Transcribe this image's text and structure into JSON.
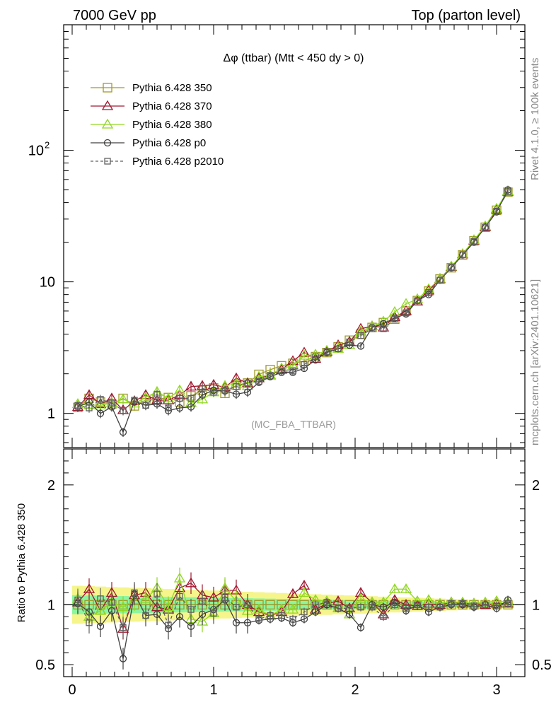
{
  "header": {
    "left": "7000 GeV pp",
    "right": "Top (parton level)"
  },
  "side_labels": {
    "upper": "Rivet 4.1.0, ≥ 100k events",
    "lower": "mcplots.cern.ch [arXiv:2401.10621]"
  },
  "chart_data": [
    {
      "type": "line",
      "panel": "main",
      "title": "Δφ (ttbar) (Mtt < 450 dy > 0)",
      "analysis_label": "(MC_FBA_TTBAR)",
      "yscale": "log",
      "xlim": [
        -0.06,
        3.2
      ],
      "ylim": [
        0.55,
        900
      ],
      "ytick_labels": [
        "1",
        "10",
        "10^2"
      ],
      "series": [
        {
          "name": "Pythia 6.428 350",
          "color": "#a09b28",
          "marker": "square",
          "dash": false,
          "x": [
            0.04,
            0.12,
            0.2,
            0.28,
            0.36,
            0.44,
            0.52,
            0.6,
            0.68,
            0.76,
            0.84,
            0.92,
            1.0,
            1.08,
            1.16,
            1.24,
            1.32,
            1.4,
            1.48,
            1.56,
            1.64,
            1.72,
            1.8,
            1.88,
            1.96,
            2.04,
            2.12,
            2.2,
            2.28,
            2.36,
            2.44,
            2.52,
            2.6,
            2.68,
            2.76,
            2.84,
            2.92,
            3.0,
            3.08
          ],
          "values": [
            1.11,
            1.3,
            1.22,
            1.18,
            1.3,
            1.14,
            1.26,
            1.28,
            1.32,
            1.22,
            1.36,
            1.5,
            1.56,
            1.42,
            1.64,
            1.7,
            1.98,
            2.15,
            2.3,
            2.4,
            2.5,
            2.7,
            2.9,
            3.2,
            3.6,
            4.0,
            4.5,
            4.9,
            5.2,
            6.0,
            7.2,
            8.5,
            10.5,
            12.8,
            16.0,
            20.5,
            26.0,
            35.0,
            48.0
          ]
        },
        {
          "name": "Pythia 6.428 370",
          "color": "#a01830",
          "marker": "triangle",
          "dash": false,
          "x": [
            0.04,
            0.12,
            0.2,
            0.28,
            0.36,
            0.44,
            0.52,
            0.6,
            0.68,
            0.76,
            0.84,
            0.92,
            1.0,
            1.08,
            1.16,
            1.24,
            1.32,
            1.4,
            1.48,
            1.56,
            1.64,
            1.72,
            1.8,
            1.88,
            1.96,
            2.04,
            2.12,
            2.2,
            2.28,
            2.36,
            2.44,
            2.52,
            2.6,
            2.68,
            2.76,
            2.84,
            2.92,
            3.0,
            3.08
          ],
          "values": [
            1.12,
            1.38,
            1.18,
            1.3,
            1.06,
            1.24,
            1.38,
            1.26,
            1.26,
            1.38,
            1.6,
            1.62,
            1.65,
            1.58,
            1.85,
            1.7,
            1.85,
            1.95,
            2.15,
            2.5,
            2.9,
            2.6,
            2.95,
            3.3,
            3.5,
            4.4,
            4.6,
            4.5,
            5.4,
            6.0,
            7.1,
            8.6,
            10.5,
            13.0,
            16.2,
            20.6,
            26.0,
            35.5,
            48.5
          ]
        },
        {
          "name": "Pythia 6.428 380",
          "color": "#90d820",
          "marker": "triangle",
          "dash": false,
          "x": [
            0.04,
            0.12,
            0.2,
            0.28,
            0.36,
            0.44,
            0.52,
            0.6,
            0.68,
            0.76,
            0.84,
            0.92,
            1.0,
            1.08,
            1.16,
            1.24,
            1.32,
            1.4,
            1.48,
            1.56,
            1.64,
            1.72,
            1.8,
            1.88,
            1.96,
            2.04,
            2.12,
            2.2,
            2.28,
            2.36,
            2.44,
            2.52,
            2.6,
            2.68,
            2.76,
            2.84,
            2.92,
            3.0,
            3.08
          ],
          "values": [
            1.18,
            1.16,
            1.15,
            1.2,
            1.28,
            1.19,
            1.32,
            1.46,
            1.3,
            1.5,
            1.2,
            1.28,
            1.45,
            1.62,
            1.68,
            1.62,
            1.9,
            1.96,
            2.2,
            2.3,
            2.75,
            2.8,
            3.0,
            3.1,
            3.3,
            4.2,
            4.6,
            5.0,
            5.9,
            6.8,
            7.4,
            8.8,
            10.6,
            13.1,
            16.3,
            20.8,
            26.5,
            36.0,
            49.0
          ]
        },
        {
          "name": "Pythia 6.428 p0",
          "color": "#404040",
          "marker": "circle",
          "dash": false,
          "x": [
            0.04,
            0.12,
            0.2,
            0.28,
            0.36,
            0.44,
            0.52,
            0.6,
            0.68,
            0.76,
            0.84,
            0.92,
            1.0,
            1.08,
            1.16,
            1.24,
            1.32,
            1.4,
            1.48,
            1.56,
            1.64,
            1.72,
            1.8,
            1.88,
            1.96,
            2.04,
            2.12,
            2.2,
            2.28,
            2.36,
            2.44,
            2.52,
            2.6,
            2.68,
            2.76,
            2.84,
            2.92,
            3.0,
            3.08
          ],
          "values": [
            1.12,
            1.22,
            1.0,
            1.12,
            0.72,
            1.24,
            1.15,
            1.18,
            1.05,
            1.1,
            1.12,
            1.38,
            1.5,
            1.48,
            1.4,
            1.45,
            1.72,
            1.9,
            2.05,
            2.05,
            2.2,
            2.55,
            2.9,
            3.1,
            3.3,
            3.25,
            4.5,
            4.8,
            5.3,
            5.7,
            7.2,
            8.0,
            10.3,
            12.8,
            16.0,
            20.0,
            26.0,
            34.0,
            50.0
          ]
        },
        {
          "name": "Pythia 6.428 p2010",
          "color": "#606060",
          "marker": "square-small",
          "dash": true,
          "x": [
            0.04,
            0.12,
            0.2,
            0.28,
            0.36,
            0.44,
            0.52,
            0.6,
            0.68,
            0.76,
            0.84,
            0.92,
            1.0,
            1.08,
            1.16,
            1.24,
            1.32,
            1.4,
            1.48,
            1.56,
            1.64,
            1.72,
            1.8,
            1.88,
            1.96,
            2.04,
            2.12,
            2.2,
            2.28,
            2.36,
            2.44,
            2.52,
            2.6,
            2.68,
            2.76,
            2.84,
            2.92,
            3.0,
            3.08
          ],
          "values": [
            1.15,
            1.1,
            1.28,
            1.2,
            1.05,
            1.26,
            1.15,
            1.4,
            1.1,
            1.3,
            1.3,
            1.55,
            1.45,
            1.5,
            1.6,
            1.7,
            1.75,
            1.95,
            2.1,
            2.1,
            2.35,
            2.7,
            2.95,
            3.1,
            3.5,
            3.9,
            4.4,
            4.4,
            5.2,
            5.8,
            7.2,
            8.3,
            10.3,
            12.9,
            16.1,
            20.3,
            26.0,
            34.5,
            48.5
          ]
        }
      ]
    },
    {
      "type": "line",
      "panel": "ratio",
      "ylabel": "Ratio to Pythia 6.428 350",
      "xlabel": "",
      "xlim": [
        -0.06,
        3.2
      ],
      "ylim": [
        0.4,
        2.3
      ],
      "xtick_labels": [
        "0",
        "1",
        "2",
        "3"
      ],
      "ytick_labels": [
        "0.5",
        "1",
        "2"
      ],
      "reference_band": {
        "name": "MC uncertainty",
        "yellow_color": "#f5f58c",
        "green_color": "#8cf5a0"
      },
      "series": [
        {
          "name": "Pythia 6.428 350",
          "values": [
            1.0,
            1.0,
            1.0,
            1.0,
            1.0,
            1.0,
            1.0,
            1.0,
            1.0,
            1.0,
            1.0,
            1.0,
            1.0,
            1.0,
            1.0,
            1.0,
            1.0,
            1.0,
            1.0,
            1.0,
            1.0,
            1.0,
            1.0,
            1.0,
            1.0,
            1.0,
            1.0,
            1.0,
            1.0,
            1.0,
            1.0,
            1.0,
            1.0,
            1.0,
            1.0,
            1.0,
            1.0,
            1.0,
            1.0
          ]
        },
        {
          "name": "Pythia 6.428 370",
          "values": [
            1.02,
            1.13,
            0.95,
            1.1,
            0.8,
            1.08,
            1.1,
            0.98,
            0.96,
            1.14,
            1.18,
            1.08,
            1.06,
            1.12,
            1.12,
            1.0,
            0.94,
            0.91,
            0.94,
            1.09,
            1.16,
            0.96,
            1.01,
            1.03,
            0.97,
            1.1,
            1.02,
            0.92,
            1.04,
            1.0,
            0.99,
            1.01,
            1.0,
            1.02,
            1.01,
            1.01,
            1.0,
            1.01,
            1.01
          ]
        },
        {
          "name": "Pythia 6.428 380",
          "values": [
            1.05,
            0.9,
            0.95,
            1.02,
            0.98,
            1.04,
            1.05,
            1.14,
            0.98,
            1.22,
            0.88,
            0.86,
            0.93,
            1.14,
            1.03,
            0.95,
            0.96,
            0.91,
            0.96,
            0.96,
            1.1,
            1.04,
            1.03,
            0.97,
            0.92,
            1.05,
            1.02,
            1.02,
            1.13,
            1.13,
            1.03,
            1.04,
            1.01,
            1.02,
            1.02,
            1.01,
            1.02,
            1.03,
            1.02
          ]
        },
        {
          "name": "Pythia 6.428 p0",
          "values": [
            1.01,
            0.94,
            0.82,
            0.95,
            0.55,
            1.09,
            0.91,
            0.92,
            0.8,
            0.9,
            0.82,
            0.92,
            0.96,
            1.04,
            0.85,
            0.85,
            0.87,
            0.88,
            0.89,
            0.85,
            0.88,
            0.94,
            1.0,
            0.97,
            0.92,
            0.81,
            1.0,
            0.98,
            1.02,
            0.95,
            1.0,
            0.94,
            0.98,
            1.0,
            1.0,
            0.98,
            1.0,
            0.97,
            1.04
          ]
        },
        {
          "name": "Pythia 6.428 p2010",
          "values": [
            1.04,
            0.85,
            1.05,
            1.02,
            0.81,
            1.1,
            0.91,
            1.09,
            0.83,
            1.07,
            0.96,
            1.03,
            0.93,
            1.06,
            0.98,
            1.0,
            0.88,
            0.91,
            0.91,
            0.88,
            0.94,
            1.0,
            1.02,
            0.97,
            0.97,
            0.98,
            0.98,
            0.9,
            1.0,
            0.97,
            1.0,
            0.98,
            0.98,
            1.01,
            1.01,
            0.99,
            1.0,
            0.99,
            1.01
          ]
        }
      ]
    }
  ]
}
